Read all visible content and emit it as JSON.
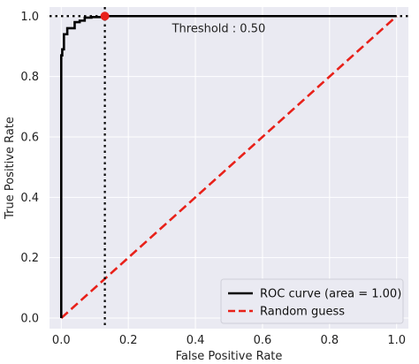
{
  "chart_data": {
    "type": "line",
    "xlabel": "False Positive Rate",
    "ylabel": "True Positive Rate",
    "xlim": [
      -0.035,
      1.035
    ],
    "ylim": [
      -0.035,
      1.03
    ],
    "x_ticks": [
      "0.0",
      "0.2",
      "0.4",
      "0.6",
      "0.8",
      "1.0"
    ],
    "y_ticks": [
      "0.0",
      "0.2",
      "0.4",
      "0.6",
      "0.8",
      "1.0"
    ],
    "grid": true,
    "legend_position": "lower-right",
    "annotation": "Threshold : 0.50",
    "threshold_point": {
      "x": 0.13,
      "y": 1.0
    },
    "series": [
      {
        "name": "ROC curve (area = 1.00)",
        "color": "#000000",
        "style": "solid",
        "x": [
          0.0,
          0.0,
          0.003,
          0.003,
          0.008,
          0.008,
          0.018,
          0.018,
          0.04,
          0.04,
          0.055,
          0.055,
          0.07,
          0.07,
          0.09,
          0.09,
          0.13,
          0.13,
          1.0,
          1.0
        ],
        "y": [
          0.0,
          0.87,
          0.87,
          0.89,
          0.89,
          0.94,
          0.94,
          0.96,
          0.96,
          0.98,
          0.98,
          0.985,
          0.985,
          0.995,
          0.995,
          0.997,
          0.997,
          1.0,
          1.0,
          1.0
        ]
      },
      {
        "name": "Random guess",
        "color": "#e8211a",
        "style": "dashed",
        "x": [
          0.0,
          1.0
        ],
        "y": [
          0.0,
          1.0
        ]
      }
    ]
  }
}
